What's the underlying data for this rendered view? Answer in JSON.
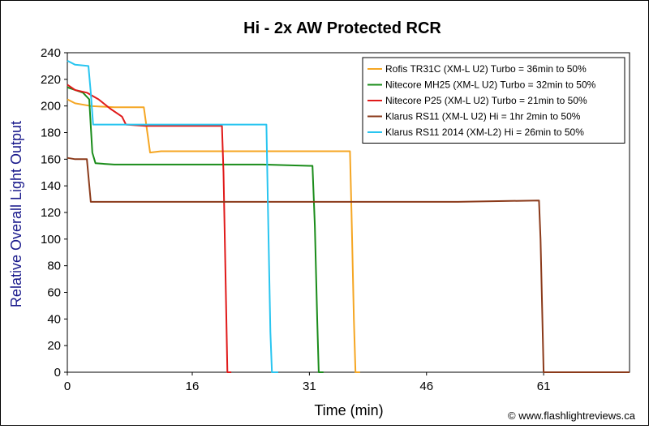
{
  "chart_data": {
    "type": "line",
    "title": "Hi - 2x AW Protected RCR",
    "xlabel": "Time (min)",
    "ylabel": "Relative Overall Light Output",
    "xlim": [
      0,
      72
    ],
    "ylim": [
      0,
      240
    ],
    "xticks": [
      0,
      16,
      31,
      46,
      61
    ],
    "yticks": [
      0,
      20,
      40,
      60,
      80,
      100,
      120,
      140,
      160,
      180,
      200,
      220,
      240
    ],
    "grid": false,
    "legend_position": "top-right",
    "credit": "© www.flashlightreviews.ca",
    "series": [
      {
        "name": "Rofis TR31C (XM-L U2) Turbo = 36min to 50%",
        "color": "#f5a623",
        "points": [
          [
            0,
            205
          ],
          [
            1,
            202
          ],
          [
            3,
            200
          ],
          [
            6,
            199
          ],
          [
            9.8,
            199
          ],
          [
            10.3,
            178
          ],
          [
            10.6,
            165
          ],
          [
            12,
            166
          ],
          [
            20,
            166
          ],
          [
            30,
            166
          ],
          [
            35.5,
            166
          ],
          [
            36.2,
            166
          ],
          [
            36.4,
            120
          ],
          [
            36.7,
            40
          ],
          [
            36.9,
            0
          ],
          [
            37.5,
            0
          ]
        ]
      },
      {
        "name": "Nitecore MH25 (XM-L U2) Turbo = 32min to 50%",
        "color": "#1a8c1a",
        "points": [
          [
            0,
            214
          ],
          [
            2,
            210
          ],
          [
            2.8,
            205
          ],
          [
            3.2,
            165
          ],
          [
            3.6,
            157
          ],
          [
            6,
            156
          ],
          [
            15,
            156
          ],
          [
            25,
            156
          ],
          [
            31,
            155
          ],
          [
            31.4,
            155
          ],
          [
            31.7,
            110
          ],
          [
            32,
            40
          ],
          [
            32.2,
            0
          ],
          [
            32.8,
            0
          ]
        ]
      },
      {
        "name": "Nitecore P25 (XM-L U2) Turbo = 21min to 50%",
        "color": "#e01a1a",
        "points": [
          [
            0,
            216
          ],
          [
            1,
            212
          ],
          [
            2.5,
            210
          ],
          [
            4,
            205
          ],
          [
            5.5,
            198
          ],
          [
            7,
            192
          ],
          [
            7.5,
            186
          ],
          [
            10,
            185
          ],
          [
            19.8,
            185
          ],
          [
            20,
            150
          ],
          [
            20.3,
            60
          ],
          [
            20.5,
            0
          ],
          [
            21,
            0
          ]
        ]
      },
      {
        "name": "Klarus RS11 (XM-L U2) Hi = 1hr 2min to 50%",
        "color": "#8b3a1a",
        "points": [
          [
            0,
            161
          ],
          [
            1,
            160
          ],
          [
            2.5,
            160
          ],
          [
            3,
            128
          ],
          [
            10,
            128
          ],
          [
            30,
            128
          ],
          [
            50,
            128
          ],
          [
            60.4,
            129
          ],
          [
            60.6,
            100
          ],
          [
            61,
            0
          ],
          [
            72,
            0
          ]
        ]
      },
      {
        "name": "Klarus RS11 2014 (XM-L2) Hi = 26min to 50%",
        "color": "#29c5f0",
        "points": [
          [
            0,
            234
          ],
          [
            1,
            231
          ],
          [
            2.7,
            230
          ],
          [
            3,
            210
          ],
          [
            3.3,
            186
          ],
          [
            6,
            186
          ],
          [
            15,
            186
          ],
          [
            25.5,
            186
          ],
          [
            25.7,
            120
          ],
          [
            26,
            30
          ],
          [
            26.2,
            0
          ],
          [
            27,
            0
          ]
        ]
      }
    ]
  }
}
